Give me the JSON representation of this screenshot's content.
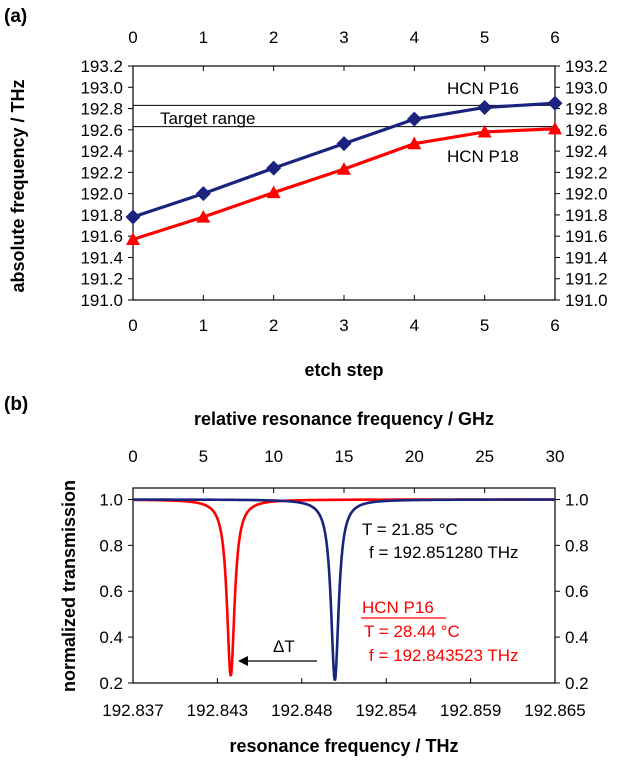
{
  "chart_data": [
    {
      "panel_label": "(a)",
      "type": "line",
      "xlabel": "etch step",
      "ylabel": "absolute frequency / THz",
      "x": [
        0,
        1,
        2,
        3,
        4,
        5,
        6
      ],
      "x_ticks": [
        "0",
        "1",
        "2",
        "3",
        "4",
        "5",
        "6"
      ],
      "xlim": [
        0,
        6
      ],
      "ylim": [
        191.0,
        193.2
      ],
      "y_ticks": [
        "191.0",
        "191.2",
        "191.4",
        "191.6",
        "191.8",
        "192.0",
        "192.2",
        "192.4",
        "192.6",
        "192.8",
        "193.0",
        "193.2"
      ],
      "series": [
        {
          "name": "HCN P16",
          "color": "#1a237e",
          "marker": "diamond",
          "values": [
            191.78,
            192.0,
            192.24,
            192.47,
            192.7,
            192.81,
            192.85
          ]
        },
        {
          "name": "HCN P18",
          "color": "#ff0000",
          "marker": "triangle",
          "values": [
            191.57,
            191.78,
            192.01,
            192.23,
            192.47,
            192.58,
            192.61
          ]
        }
      ],
      "target_lines": [
        192.83,
        192.63
      ],
      "annotations": {
        "target": "Target range",
        "p16": "HCN P16",
        "p18": "HCN P18"
      }
    },
    {
      "panel_label": "(b)",
      "type": "line",
      "xlabel": "resonance frequency / THz",
      "x2label": "relative resonance frequency / GHz",
      "ylabel": "normalized transmission",
      "x_ticks": [
        "192.837",
        "192.843",
        "192.848",
        "192.854",
        "192.859",
        "192.865"
      ],
      "x2_ticks": [
        "0",
        "5",
        "10",
        "15",
        "20",
        "25",
        "30"
      ],
      "xlim_ghz": [
        0,
        30
      ],
      "ylim": [
        0.2,
        1.05
      ],
      "y_ticks": [
        "0.2",
        "0.4",
        "0.6",
        "0.8",
        "1.0"
      ],
      "series": [
        {
          "color": "#ff0000",
          "center_ghz": 6.95,
          "min": 0.23,
          "width_ghz": 0.33
        },
        {
          "color": "#1a237e",
          "center_ghz": 14.35,
          "min": 0.21,
          "width_ghz": 0.33
        }
      ],
      "annotations": {
        "t_black": "T = 21.85 °C",
        "f_black": "f = 192.851280 THz",
        "p16_red": "HCN P16",
        "t_red": "T = 28.44 °C",
        "f_red": "f = 192.843523 THz",
        "delta": "ΔT"
      }
    }
  ]
}
